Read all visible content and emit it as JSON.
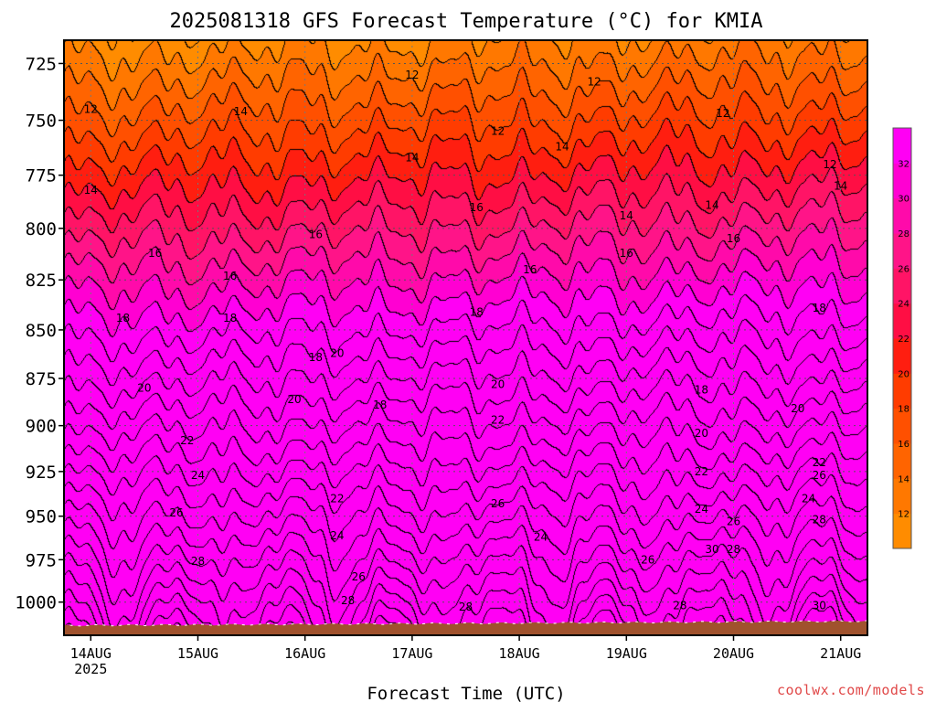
{
  "chart_data": {
    "type": "heatmap",
    "title": "2025081318 GFS Forecast Temperature (°C) for KMIA",
    "xlabel": "Forecast Time (UTC)",
    "ylabel": "",
    "x_ticks": [
      "14AUG",
      "15AUG",
      "16AUG",
      "17AUG",
      "18AUG",
      "19AUG",
      "20AUG",
      "21AUG"
    ],
    "x_sublabel": "2025",
    "x_range_days": [
      13.75,
      21.25
    ],
    "y_ticks": [
      725,
      750,
      775,
      800,
      825,
      850,
      875,
      900,
      925,
      950,
      975,
      1000
    ],
    "y_range_hpa": [
      1020,
      715
    ],
    "y_scale": "pressure-log",
    "grid": "dotted",
    "colorbar_levels": [
      12,
      14,
      16,
      18,
      20,
      22,
      24,
      26,
      28,
      30,
      32
    ],
    "colorbar_colors": [
      "#ff8c00",
      "#ff7800",
      "#ff6400",
      "#ff5000",
      "#ff3c00",
      "#ff1e10",
      "#ff0e44",
      "#ff1466",
      "#ff1488",
      "#ff0aaa",
      "#ff00d2",
      "#ff00f4"
    ],
    "ground_color": "#a0522d",
    "contour_labels": [
      {
        "v": 12,
        "pts": [
          [
            14.0,
            745
          ],
          [
            17.0,
            730
          ],
          [
            17.8,
            755
          ],
          [
            18.7,
            733
          ],
          [
            19.9,
            747
          ],
          [
            20.9,
            770
          ]
        ]
      },
      {
        "v": 14,
        "pts": [
          [
            14.0,
            782
          ],
          [
            15.4,
            746
          ],
          [
            17.0,
            767
          ],
          [
            18.4,
            762
          ],
          [
            19.0,
            794
          ],
          [
            19.8,
            789
          ],
          [
            21.0,
            780
          ]
        ]
      },
      {
        "v": 16,
        "pts": [
          [
            14.6,
            812
          ],
          [
            15.3,
            823
          ],
          [
            16.1,
            803
          ],
          [
            17.6,
            790
          ],
          [
            18.1,
            820
          ],
          [
            19.0,
            812
          ],
          [
            20.0,
            805
          ]
        ]
      },
      {
        "v": 18,
        "pts": [
          [
            14.3,
            844
          ],
          [
            15.3,
            844
          ],
          [
            16.1,
            864
          ],
          [
            17.6,
            841
          ],
          [
            19.7,
            881
          ],
          [
            20.8,
            839
          ]
        ]
      },
      {
        "v": 20,
        "pts": [
          [
            14.5,
            880
          ],
          [
            15.9,
            886
          ],
          [
            16.3,
            862
          ],
          [
            17.8,
            878
          ],
          [
            19.7,
            904
          ],
          [
            20.6,
            891
          ]
        ]
      },
      {
        "v": 18,
        "pts": [
          [
            16.7,
            889
          ]
        ]
      },
      {
        "v": 22,
        "pts": [
          [
            14.9,
            908
          ],
          [
            16.3,
            940
          ],
          [
            17.8,
            897
          ],
          [
            19.7,
            925
          ],
          [
            20.8,
            920
          ]
        ]
      },
      {
        "v": 24,
        "pts": [
          [
            15.0,
            927
          ],
          [
            16.3,
            961
          ],
          [
            18.2,
            962
          ],
          [
            19.7,
            946
          ],
          [
            20.7,
            940
          ]
        ]
      },
      {
        "v": 26,
        "pts": [
          [
            14.8,
            948
          ],
          [
            16.5,
            985
          ],
          [
            17.8,
            943
          ],
          [
            19.2,
            975
          ],
          [
            20.0,
            953
          ],
          [
            20.8,
            927
          ]
        ]
      },
      {
        "v": 28,
        "pts": [
          [
            15.0,
            976
          ],
          [
            16.4,
            999
          ],
          [
            17.5,
            1003
          ],
          [
            19.5,
            1002
          ],
          [
            20.0,
            969
          ],
          [
            20.8,
            952
          ]
        ]
      },
      {
        "v": 30,
        "pts": [
          [
            19.8,
            969
          ],
          [
            20.8,
            1002
          ]
        ]
      }
    ]
  },
  "credit": "coolwx.com/models"
}
